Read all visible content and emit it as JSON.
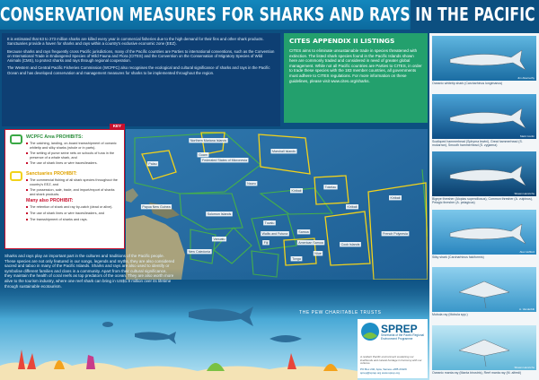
{
  "header": {
    "title": "CONSERVATION MEASURES FOR SHARKS AND RAYS IN THE PACIFIC"
  },
  "intro": {
    "paragraphs": [
      "It is estimated that 63 to 273 million sharks are killed every year in commercial fisheries due to the high demand for their fins and other shark products. Sanctuaries provide a haven for sharks and rays within a country's exclusive economic zone (EEZ).",
      "Because sharks and rays frequently cross Pacific jurisdictions, many of the Pacific countries are Parties to international conventions, such as the Convention on International Trade in Endangered Species of Wild Fauna and Flora (CITES) and the Convention on the Conservation of Migratory Species of Wild Animals (CMS), to protect sharks and rays through regional cooperation.",
      "The Western and Central Pacific Fisheries Commission (WCPFC) also recognises the ecological and cultural significance of sharks and rays in the Pacific Ocean and has developed conservation and management measures for sharks to be implemented throughout the region."
    ]
  },
  "cites": {
    "title": "CITES APPENDIX II LISTINGS",
    "paragraphs": [
      "CITES aims to eliminate unsustainable trade in species threatened with extinction. The listed shark species found in the Pacific Islands shown here are commonly traded and considered in need of greater global management. While not all Pacific countries are Parties to CITES, in order to trade these species with the 183 member countries, all governments must adhere to CITES regulations. For more information on these guidelines, please visit www.cites.org/sharks."
    ]
  },
  "key": {
    "label": "KEY",
    "wcpfc": {
      "title": "WCPFC Area PROHIBITS:",
      "items": [
        "The catching, landing, on-board transshipment of oceanic whitetip and silky sharks (whole or in parts).",
        "The setting of purse seine nets on schools of tuna in the presence of a whale shark, and",
        "The use of shark lines or wire traces/leaders."
      ]
    },
    "sanctuaries": {
      "title": "Sanctuaries PROHIBIT:",
      "items": [
        "The commercial fishing of all shark species throughout the country's EEZ, and",
        "The possession, sale, trade, and import/export of sharks and shark products."
      ]
    },
    "many": {
      "title": "Many also PROHIBIT:",
      "items": [
        "The retention of shark and ray by-catch (dead or alive).",
        "The use of shark lines or wire traces/leaders, and",
        "The transshipment of sharks and rays."
      ]
    }
  },
  "map": {
    "labels": [
      "Northern Mariana Islands",
      "Guam",
      "Palau",
      "Federated States of Micronesia",
      "Marshall Islands",
      "Papua New Guinea",
      "Nauru",
      "Kiribati",
      "Solomon Islands",
      "Tuvalu",
      "Tokelau",
      "Kiribati",
      "Vanuatu",
      "Fiji",
      "Samoa",
      "American Samoa",
      "Wallis and Futuna",
      "New Caledonia",
      "Tonga",
      "Niue",
      "Cook Islands",
      "French Polynesia",
      "Kiribati"
    ]
  },
  "bottom": {
    "paragraph": "Sharks and rays play an important part in the cultures and traditions of the Pacific people. These species are not only featured in our songs, legends and myths, they are also considered sacred and taboo in many of the Pacific Islands. Sharks and rays are also used to identify or symbolise different families and clans in a community. Apart from their cultural significance, they maintain the health of coral reefs as top predators of the ocean. They are also worth more alive to the tourism industry, where one reef shark can bring in US$1.9 million over its lifetime through sustainable ecotourism."
  },
  "photos": [
    {
      "caption": "Oceanic whitetip shark (Carcharhinus longimanus)",
      "credit": "Jim Abernethy"
    },
    {
      "caption": "Scalloped hammerhead (Sphyrna lewini), Great hammerhead (S. mokarran), Smooth hammerhead (S. zygaena)",
      "credit": "Mark Conlin"
    },
    {
      "caption": "Bigeye thresher (Alopias superciliosus), Common thresher (A. vulpinus), Pelagic thresher (A. pelagicus)",
      "credit": "Shawn Heinrichs"
    },
    {
      "caption": "Silky shark (Carcharhinus falciformis)",
      "credit": "Alex Hofford"
    },
    {
      "caption": "Mobula ray (Mobula spp.)",
      "credit": "A. Vanderbilt"
    },
    {
      "caption": "Oceanic manta ray (Manta birostris), Reef manta ray (M. alfredi)",
      "credit": "Shawn Heinrichs"
    }
  ],
  "logos": {
    "pew": "THE PEW CHARITABLE TRUSTS",
    "sprep": "SPREP",
    "sprep_subtitle": "Secretariat of the Pacific Regional Environment Programme",
    "tagline": "A resilient Pacific environment sustaining our livelihoods and natural heritage in harmony with our cultures.",
    "address": "PO Box 240, Apia, Samoa  +685 21929  sprep@sprep.org  www.sprep.org"
  }
}
